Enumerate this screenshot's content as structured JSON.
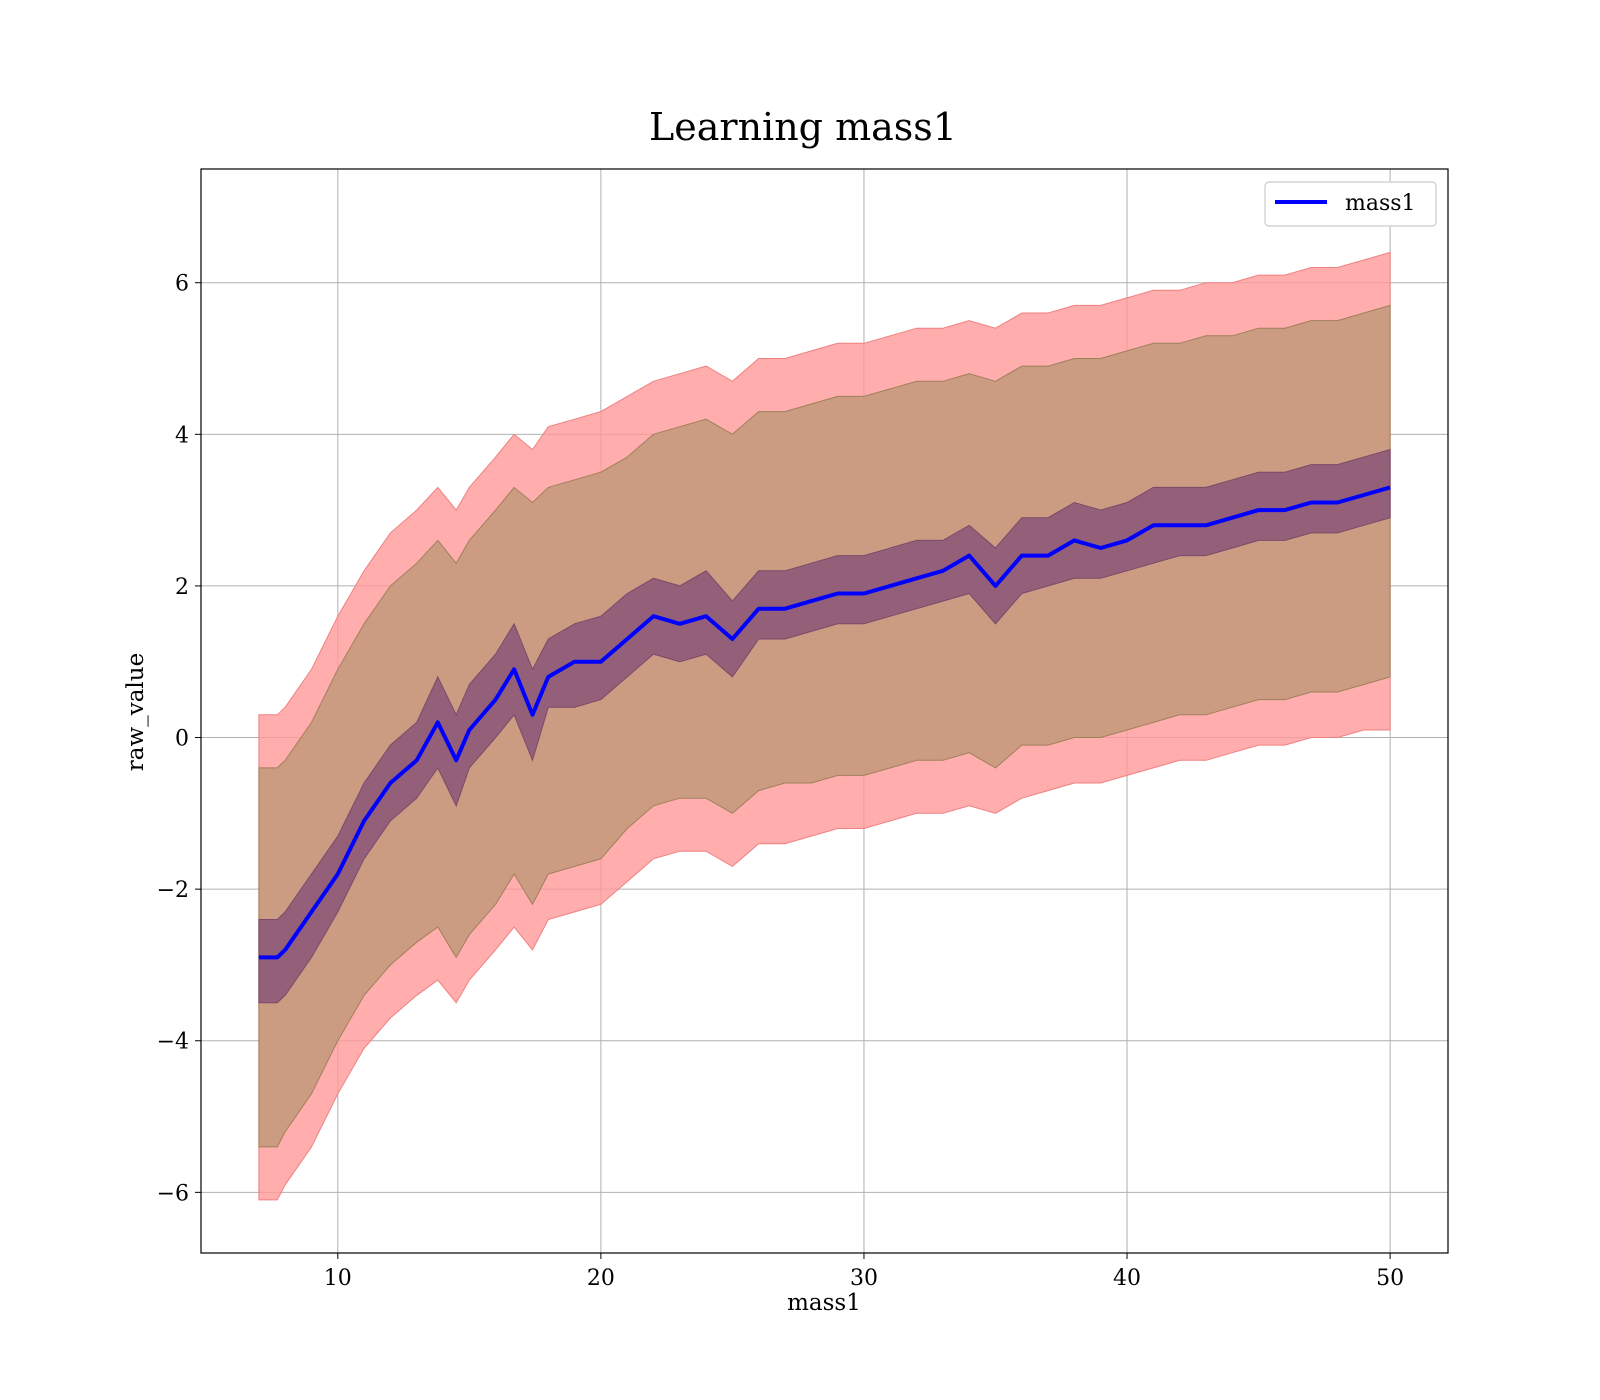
{
  "chart_data": {
    "type": "line",
    "title": "Learning mass1",
    "xlabel": "mass1",
    "ylabel": "raw_value",
    "xlim": [
      4.8,
      52.2
    ],
    "ylim": [
      -6.8,
      7.5
    ],
    "xticks": [
      10,
      20,
      30,
      40,
      50
    ],
    "xtick_labels": [
      "10",
      "20",
      "30",
      "40",
      "50"
    ],
    "yticks": [
      -6,
      -4,
      -2,
      0,
      2,
      4,
      6
    ],
    "ytick_labels": [
      "−6",
      "−4",
      "−2",
      "0",
      "2",
      "4",
      "6"
    ],
    "grid": true,
    "legend": {
      "position": "top-right",
      "entries": [
        "mass1"
      ]
    },
    "colors": {
      "line": "#0000ff",
      "outer_band": "#ff9999",
      "middle_band": "#c89a80",
      "inner_band": "#8e5a78"
    },
    "x": [
      7.0,
      7.7,
      8.0,
      9.0,
      10.0,
      11.0,
      12.0,
      13.0,
      13.8,
      14.5,
      15.0,
      16.0,
      16.7,
      17.4,
      18.0,
      19.0,
      20.0,
      21.0,
      22.0,
      23.0,
      24.0,
      25.0,
      26.0,
      27.0,
      28.0,
      29.0,
      30.0,
      31.0,
      32.0,
      33.0,
      34.0,
      35.0,
      36.0,
      37.0,
      38.0,
      39.0,
      40.0,
      41.0,
      42.0,
      43.0,
      44.0,
      45.0,
      46.0,
      47.0,
      48.0,
      49.0,
      50.0
    ],
    "series": [
      {
        "name": "mass1",
        "y": [
          -2.9,
          -2.9,
          -2.8,
          -2.3,
          -1.8,
          -1.1,
          -0.6,
          -0.3,
          0.2,
          -0.3,
          0.1,
          0.5,
          0.9,
          0.3,
          0.8,
          1.0,
          1.0,
          1.3,
          1.6,
          1.5,
          1.6,
          1.3,
          1.7,
          1.7,
          1.8,
          1.9,
          1.9,
          2.0,
          2.1,
          2.2,
          2.4,
          2.0,
          2.4,
          2.4,
          2.6,
          2.5,
          2.6,
          2.8,
          2.8,
          2.8,
          2.9,
          3.0,
          3.0,
          3.1,
          3.1,
          3.2,
          3.3
        ],
        "inner_band": {
          "lower": [
            -3.5,
            -3.5,
            -3.4,
            -2.9,
            -2.3,
            -1.6,
            -1.1,
            -0.8,
            -0.4,
            -0.9,
            -0.4,
            0.0,
            0.3,
            -0.3,
            0.4,
            0.4,
            0.5,
            0.8,
            1.1,
            1.0,
            1.1,
            0.8,
            1.3,
            1.3,
            1.4,
            1.5,
            1.5,
            1.6,
            1.7,
            1.8,
            1.9,
            1.5,
            1.9,
            2.0,
            2.1,
            2.1,
            2.2,
            2.3,
            2.4,
            2.4,
            2.5,
            2.6,
            2.6,
            2.7,
            2.7,
            2.8,
            2.9
          ],
          "upper": [
            -2.4,
            -2.4,
            -2.3,
            -1.8,
            -1.3,
            -0.6,
            -0.1,
            0.2,
            0.8,
            0.3,
            0.7,
            1.1,
            1.5,
            0.9,
            1.3,
            1.5,
            1.6,
            1.9,
            2.1,
            2.0,
            2.2,
            1.8,
            2.2,
            2.2,
            2.3,
            2.4,
            2.4,
            2.5,
            2.6,
            2.6,
            2.8,
            2.5,
            2.9,
            2.9,
            3.1,
            3.0,
            3.1,
            3.3,
            3.3,
            3.3,
            3.4,
            3.5,
            3.5,
            3.6,
            3.6,
            3.7,
            3.8
          ]
        },
        "middle_band": {
          "lower": [
            -5.4,
            -5.4,
            -5.2,
            -4.7,
            -4.0,
            -3.4,
            -3.0,
            -2.7,
            -2.5,
            -2.9,
            -2.6,
            -2.2,
            -1.8,
            -2.2,
            -1.8,
            -1.7,
            -1.6,
            -1.2,
            -0.9,
            -0.8,
            -0.8,
            -1.0,
            -0.7,
            -0.6,
            -0.6,
            -0.5,
            -0.5,
            -0.4,
            -0.3,
            -0.3,
            -0.2,
            -0.4,
            -0.1,
            -0.1,
            0.0,
            0.0,
            0.1,
            0.2,
            0.3,
            0.3,
            0.4,
            0.5,
            0.5,
            0.6,
            0.6,
            0.7,
            0.8
          ],
          "upper": [
            -0.4,
            -0.4,
            -0.3,
            0.2,
            0.9,
            1.5,
            2.0,
            2.3,
            2.6,
            2.3,
            2.6,
            3.0,
            3.3,
            3.1,
            3.3,
            3.4,
            3.5,
            3.7,
            4.0,
            4.1,
            4.2,
            4.0,
            4.3,
            4.3,
            4.4,
            4.5,
            4.5,
            4.6,
            4.7,
            4.7,
            4.8,
            4.7,
            4.9,
            4.9,
            5.0,
            5.0,
            5.1,
            5.2,
            5.2,
            5.3,
            5.3,
            5.4,
            5.4,
            5.5,
            5.5,
            5.6,
            5.7
          ]
        },
        "outer_band": {
          "lower": [
            -6.1,
            -6.1,
            -5.9,
            -5.4,
            -4.7,
            -4.1,
            -3.7,
            -3.4,
            -3.2,
            -3.5,
            -3.2,
            -2.8,
            -2.5,
            -2.8,
            -2.4,
            -2.3,
            -2.2,
            -1.9,
            -1.6,
            -1.5,
            -1.5,
            -1.7,
            -1.4,
            -1.4,
            -1.3,
            -1.2,
            -1.2,
            -1.1,
            -1.0,
            -1.0,
            -0.9,
            -1.0,
            -0.8,
            -0.7,
            -0.6,
            -0.6,
            -0.5,
            -0.4,
            -0.3,
            -0.3,
            -0.2,
            -0.1,
            -0.1,
            0.0,
            0.0,
            0.1,
            0.1
          ],
          "upper": [
            0.3,
            0.3,
            0.4,
            0.9,
            1.6,
            2.2,
            2.7,
            3.0,
            3.3,
            3.0,
            3.3,
            3.7,
            4.0,
            3.8,
            4.1,
            4.2,
            4.3,
            4.5,
            4.7,
            4.8,
            4.9,
            4.7,
            5.0,
            5.0,
            5.1,
            5.2,
            5.2,
            5.3,
            5.4,
            5.4,
            5.5,
            5.4,
            5.6,
            5.6,
            5.7,
            5.7,
            5.8,
            5.9,
            5.9,
            6.0,
            6.0,
            6.1,
            6.1,
            6.2,
            6.2,
            6.3,
            6.4
          ]
        }
      }
    ]
  }
}
